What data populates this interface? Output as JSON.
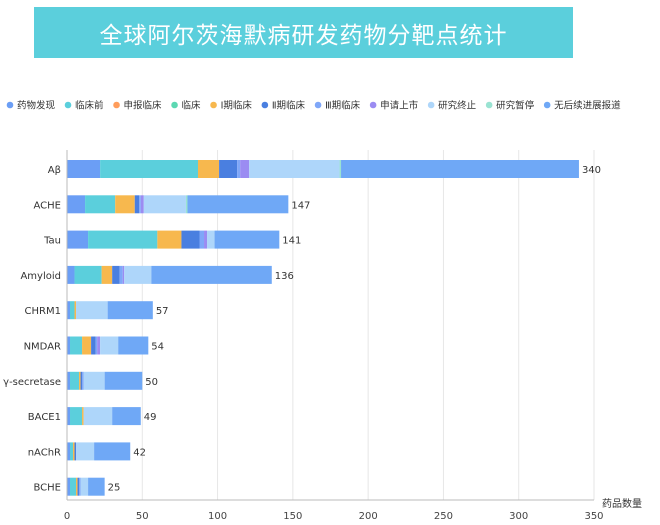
{
  "chart_data": {
    "type": "bar",
    "orientation": "horizontal",
    "stacked": true,
    "title": "全球阿尔茨海默病研发药物分靶点统计",
    "xlabel": "药品数量",
    "ylabel": "",
    "xlim": [
      0,
      350
    ],
    "xticks": [
      "0",
      "50",
      "100",
      "150",
      "200",
      "250",
      "300",
      "350"
    ],
    "grid": true,
    "legend_position": "top",
    "categories": [
      "Aβ",
      "ACHE",
      "Tau",
      "Amyloid",
      "CHRM1",
      "NMDAR",
      "γ-secretase",
      "BACE1",
      "nAChR",
      "BCHE"
    ],
    "totals": [
      "340",
      "147",
      "141",
      "136",
      "57",
      "54",
      "50",
      "49",
      "42",
      "25"
    ],
    "series": [
      {
        "name": "药物发现",
        "color": "#6B9EF5",
        "values": [
          22,
          12,
          14,
          5,
          2,
          2,
          2,
          2,
          2,
          2
        ]
      },
      {
        "name": "临床前",
        "color": "#5BCFDC",
        "values": [
          65,
          20,
          46,
          18,
          3,
          8,
          6,
          8,
          2,
          4
        ]
      },
      {
        "name": "申报临床",
        "color": "#FF9D5C",
        "values": [
          0,
          0,
          0,
          0,
          0,
          0,
          0,
          0,
          0,
          0
        ]
      },
      {
        "name": "临床",
        "color": "#5CD8B2",
        "values": [
          0,
          0,
          0,
          0,
          0,
          0,
          0,
          0,
          0,
          0
        ]
      },
      {
        "name": "Ⅰ期临床",
        "color": "#F7B84E",
        "values": [
          14,
          13,
          16,
          7,
          1,
          6,
          1,
          1,
          1,
          1
        ]
      },
      {
        "name": "Ⅱ期临床",
        "color": "#4A7FE0",
        "values": [
          12,
          3,
          12,
          5,
          0,
          3,
          1,
          0,
          1,
          1
        ]
      },
      {
        "name": "Ⅲ期临床",
        "color": "#7FA7F8",
        "values": [
          2,
          1,
          3,
          2,
          0,
          1,
          1,
          0,
          0,
          1
        ]
      },
      {
        "name": "申请上市",
        "color": "#9B8CF2",
        "values": [
          6,
          2,
          2,
          1,
          0,
          2,
          0,
          0,
          0,
          0
        ]
      },
      {
        "name": "研究终止",
        "color": "#AED6FA",
        "values": [
          60,
          28,
          5,
          18,
          21,
          12,
          14,
          19,
          12,
          5
        ]
      },
      {
        "name": "研究暂停",
        "color": "#9AE3D2",
        "values": [
          1,
          1,
          0,
          0,
          0,
          0,
          0,
          0,
          0,
          0
        ]
      },
      {
        "name": "无后续进展报道",
        "color": "#6FA8F6",
        "values": [
          158,
          67,
          43,
          80,
          30,
          20,
          25,
          19,
          24,
          11
        ]
      }
    ]
  }
}
